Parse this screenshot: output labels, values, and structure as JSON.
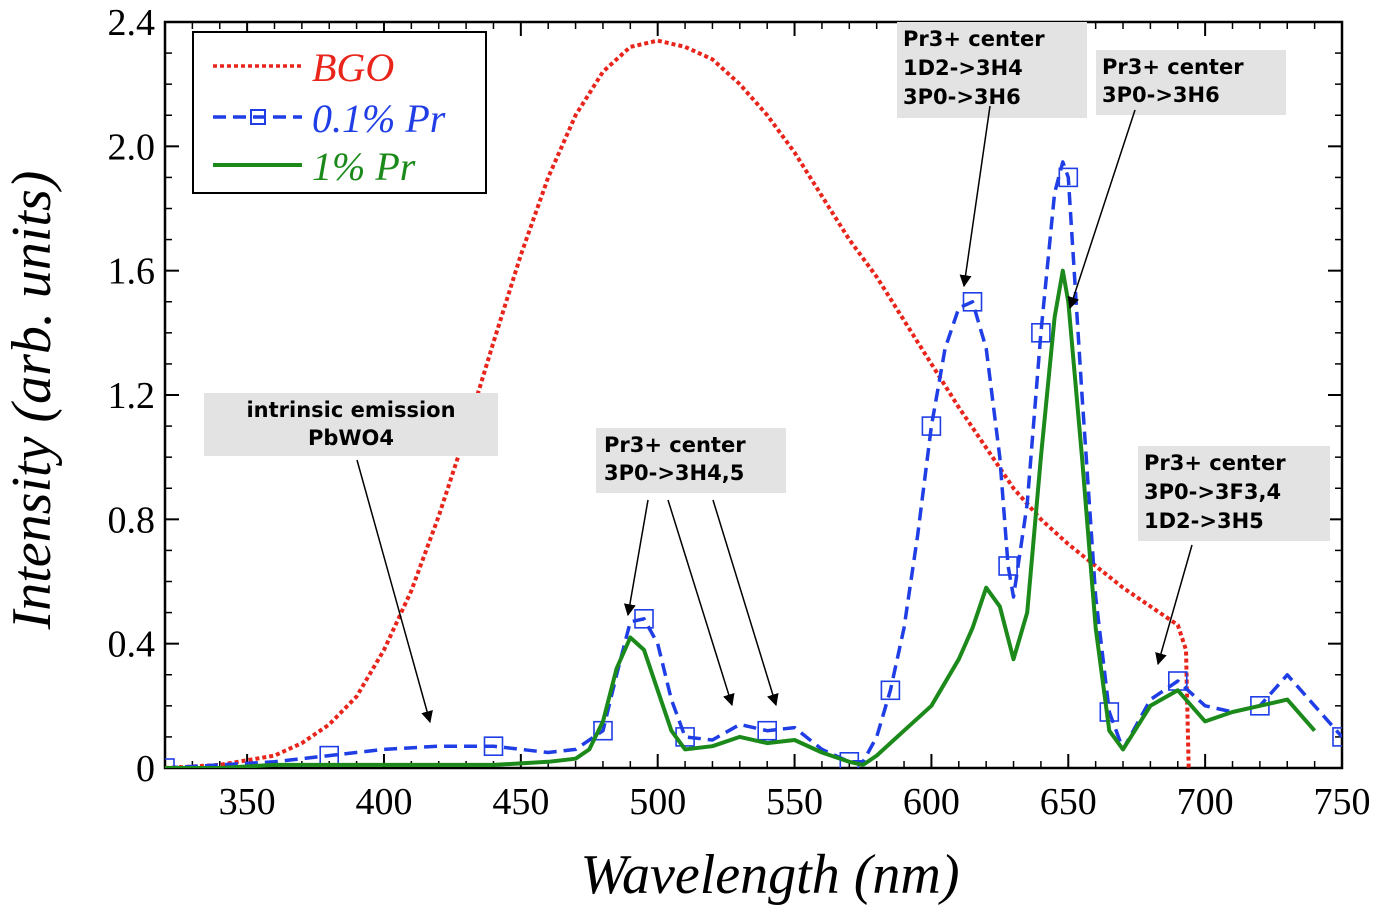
{
  "chart_data": {
    "type": "line",
    "xlabel": "Wavelength (nm)",
    "ylabel": "Intensity (arb. units)",
    "xlim": [
      320,
      750
    ],
    "ylim": [
      0,
      2.4
    ],
    "x_ticks": [
      "350",
      "400",
      "450",
      "500",
      "550",
      "600",
      "650",
      "700",
      "750"
    ],
    "y_ticks": [
      "0",
      "0.4",
      "0.8",
      "1.2",
      "1.6",
      "2.0",
      "2.4"
    ],
    "grid": false,
    "legend_position": "top-left",
    "series": [
      {
        "name": "BGO",
        "color": "#e8241b",
        "style": "dotted",
        "x": [
          320,
          340,
          360,
          370,
          380,
          390,
          400,
          410,
          420,
          430,
          440,
          450,
          460,
          470,
          480,
          490,
          500,
          510,
          520,
          530,
          540,
          550,
          560,
          570,
          580,
          590,
          600,
          610,
          620,
          630,
          640,
          650,
          660,
          670,
          680,
          690,
          693,
          694
        ],
        "y": [
          0.0,
          0.01,
          0.04,
          0.08,
          0.14,
          0.23,
          0.38,
          0.57,
          0.81,
          1.08,
          1.37,
          1.65,
          1.9,
          2.1,
          2.24,
          2.32,
          2.34,
          2.32,
          2.28,
          2.2,
          2.1,
          1.98,
          1.84,
          1.7,
          1.58,
          1.44,
          1.3,
          1.16,
          1.03,
          0.9,
          0.8,
          0.72,
          0.65,
          0.58,
          0.52,
          0.46,
          0.38,
          0.0
        ]
      },
      {
        "name": "0.1% Pr",
        "color": "#1f3ee6",
        "style": "dashed",
        "x": [
          320,
          340,
          360,
          380,
          400,
          420,
          440,
          460,
          470,
          480,
          485,
          490,
          495,
          500,
          505,
          510,
          520,
          530,
          540,
          550,
          560,
          570,
          575,
          580,
          585,
          590,
          595,
          600,
          605,
          610,
          615,
          620,
          625,
          628,
          630,
          635,
          640,
          645,
          648,
          650,
          655,
          660,
          665,
          670,
          680,
          690,
          700,
          710,
          720,
          730,
          740,
          750
        ],
        "y": [
          0.0,
          0.01,
          0.02,
          0.04,
          0.06,
          0.07,
          0.07,
          0.05,
          0.06,
          0.12,
          0.3,
          0.47,
          0.48,
          0.4,
          0.22,
          0.1,
          0.09,
          0.14,
          0.12,
          0.13,
          0.06,
          0.02,
          0.02,
          0.1,
          0.25,
          0.45,
          0.75,
          1.1,
          1.35,
          1.48,
          1.5,
          1.35,
          1.0,
          0.65,
          0.55,
          0.85,
          1.4,
          1.85,
          1.95,
          1.9,
          1.2,
          0.55,
          0.18,
          0.06,
          0.22,
          0.28,
          0.2,
          0.18,
          0.2,
          0.3,
          0.2,
          0.1
        ]
      },
      {
        "name": "1% Pr",
        "color": "#1b8a1b",
        "style": "solid",
        "x": [
          320,
          340,
          360,
          380,
          400,
          420,
          440,
          460,
          470,
          475,
          480,
          485,
          490,
          495,
          500,
          505,
          510,
          520,
          530,
          540,
          550,
          560,
          570,
          575,
          580,
          590,
          600,
          610,
          615,
          620,
          625,
          630,
          635,
          640,
          645,
          648,
          650,
          655,
          660,
          665,
          670,
          680,
          690,
          700,
          710,
          720,
          730,
          740
        ],
        "y": [
          0.0,
          0.0,
          0.01,
          0.01,
          0.01,
          0.01,
          0.01,
          0.02,
          0.03,
          0.06,
          0.15,
          0.32,
          0.42,
          0.38,
          0.25,
          0.12,
          0.06,
          0.07,
          0.1,
          0.08,
          0.09,
          0.05,
          0.02,
          0.01,
          0.04,
          0.12,
          0.2,
          0.35,
          0.45,
          0.58,
          0.52,
          0.35,
          0.5,
          1.0,
          1.45,
          1.6,
          1.5,
          1.0,
          0.45,
          0.12,
          0.06,
          0.2,
          0.25,
          0.15,
          0.18,
          0.2,
          0.22,
          0.12
        ]
      }
    ],
    "annotations": [
      {
        "lines": [
          "intrinsic emission",
          "PbWO4"
        ]
      },
      {
        "lines": [
          "Pr3+ center",
          "3P0->3H4,5"
        ]
      },
      {
        "lines": [
          "Pr3+ center",
          "1D2->3H4",
          "3P0->3H6"
        ]
      },
      {
        "lines": [
          "Pr3+ center",
          "3P0->3H6"
        ]
      },
      {
        "lines": [
          "Pr3+ center",
          "3P0->3F3,4",
          "1D2->3H5"
        ]
      }
    ]
  }
}
